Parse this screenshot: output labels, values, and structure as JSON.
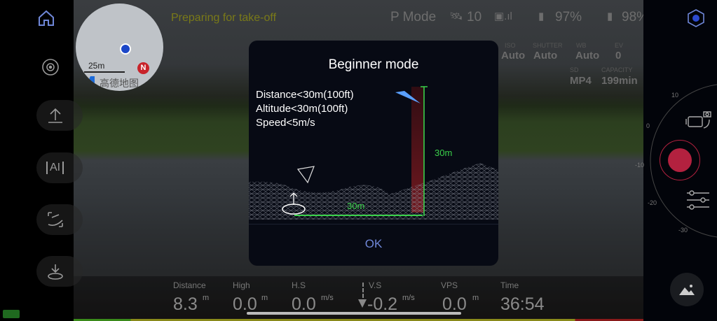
{
  "status": {
    "message": "Preparing for take-off",
    "mode": "P Mode",
    "satellites": "10",
    "remote_battery": "97%",
    "aircraft_battery": "98%"
  },
  "map": {
    "scale": "25m",
    "provider": "高德地图",
    "badge": "N"
  },
  "camera": {
    "iso_label": "ISO",
    "iso": "Auto",
    "shutter_label": "SHUTTER",
    "shutter": "Auto",
    "wb_label": "WB",
    "wb": "Auto",
    "ev_label": "EV",
    "ev": "0",
    "sd_label": "SD",
    "format": "MP4",
    "capacity_label": "CAPACITY",
    "capacity": "199min"
  },
  "modal": {
    "title": "Beginner mode",
    "rules": [
      "Distance<30m(100ft)",
      "Altitude<30m(100ft)",
      "Speed<5m/s"
    ],
    "height_label": "30m",
    "distance_label": "30m",
    "ok": "OK"
  },
  "telemetry": [
    {
      "label": "Distance",
      "value": "8.3",
      "unit": "m"
    },
    {
      "label": "High",
      "value": "0.0",
      "unit": "m"
    },
    {
      "label": "H.S",
      "value": "0.0",
      "unit": "m/s"
    },
    {
      "label": "V.S",
      "value": "-0.2",
      "unit": "m/s"
    },
    {
      "label": "VPS",
      "value": "0.0",
      "unit": "m"
    },
    {
      "label": "Time",
      "value": "36:54"
    }
  ],
  "gimbal_scale": [
    "10",
    "0",
    "-10",
    "-20",
    "-30"
  ],
  "colors": {
    "record": "#b3213f",
    "accent": "#6f87d8",
    "guide_green": "#3ad04a",
    "status_yellow": "#8a8a1a"
  }
}
